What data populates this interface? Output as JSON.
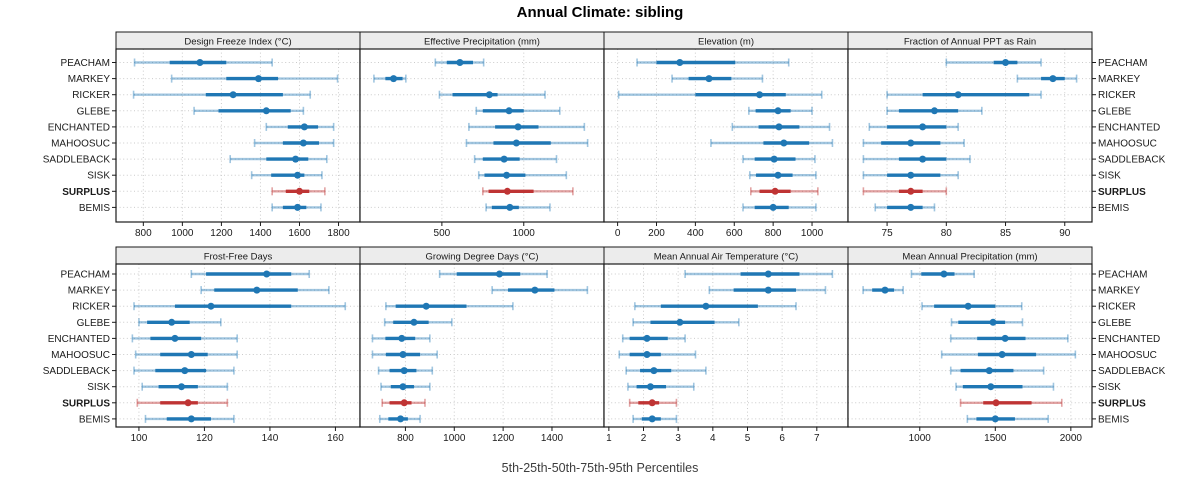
{
  "title": "Annual Climate: sibling",
  "caption": "5th-25th-50th-75th-95th Percentiles",
  "sites": [
    "PEACHAM",
    "MARKEY",
    "RICKER",
    "GLEBE",
    "ENCHANTED",
    "MAHOOSUC",
    "SADDLEBACK",
    "SISK",
    "SURPLUS",
    "BEMIS"
  ],
  "highlight_site": "SURPLUS",
  "colors": {
    "normal": "#1F77B4",
    "normal_light": "rgba(31,119,180,0.42)",
    "highlight": "#BF3434",
    "highlight_light": "rgba(191,52,52,0.45)",
    "grid": "#CBCBCB",
    "strip_bg": "#ECECEC",
    "border": "#1A1A1A",
    "text": "#1A1A1A"
  },
  "chart_data": {
    "type": "dot-whisker-trellis",
    "layout": "2 rows x 4 cols",
    "percentiles": [
      5,
      25,
      50,
      75,
      95
    ],
    "legend": "each row: 5th-25th-50th-75th-95th percentile whisker plot per site; SURPLUS highlighted",
    "panels": [
      {
        "title": "Design Freeze Index (°C)",
        "xlim": [
          660,
          1910
        ],
        "xticks": [
          800,
          1000,
          1200,
          1400,
          1600,
          1800
        ],
        "values": [
          [
            755,
            935,
            1090,
            1225,
            1460
          ],
          [
            945,
            1225,
            1390,
            1490,
            1795
          ],
          [
            750,
            1120,
            1260,
            1515,
            1655
          ],
          [
            1060,
            1185,
            1430,
            1555,
            1620
          ],
          [
            1430,
            1540,
            1625,
            1695,
            1775
          ],
          [
            1370,
            1515,
            1620,
            1700,
            1775
          ],
          [
            1245,
            1430,
            1580,
            1645,
            1740
          ],
          [
            1355,
            1455,
            1590,
            1625,
            1715
          ],
          [
            1460,
            1530,
            1600,
            1650,
            1730
          ],
          [
            1460,
            1515,
            1590,
            1635,
            1710
          ]
        ]
      },
      {
        "title": "Effective Precipitation (mm)",
        "xlim": [
          0,
          1490
        ],
        "xticks": [
          500,
          1000
        ],
        "values": [
          [
            460,
            530,
            610,
            690,
            755
          ],
          [
            85,
            155,
            205,
            260,
            280
          ],
          [
            485,
            565,
            790,
            840,
            1130
          ],
          [
            710,
            750,
            910,
            1000,
            1220
          ],
          [
            665,
            825,
            965,
            1090,
            1370
          ],
          [
            650,
            815,
            955,
            1165,
            1390
          ],
          [
            700,
            750,
            880,
            975,
            1200
          ],
          [
            725,
            760,
            895,
            1010,
            1260
          ],
          [
            750,
            785,
            900,
            1060,
            1300
          ],
          [
            770,
            805,
            915,
            970,
            1160
          ]
        ]
      },
      {
        "title": "Elevation (m)",
        "xlim": [
          -70,
          1185
        ],
        "xticks": [
          0,
          200,
          400,
          600,
          800,
          1000
        ],
        "values": [
          [
            100,
            200,
            320,
            605,
            880
          ],
          [
            280,
            365,
            470,
            585,
            745
          ],
          [
            5,
            400,
            730,
            865,
            1050
          ],
          [
            675,
            710,
            825,
            890,
            1000
          ],
          [
            590,
            725,
            830,
            935,
            1090
          ],
          [
            480,
            750,
            855,
            985,
            1105
          ],
          [
            645,
            705,
            805,
            915,
            1015
          ],
          [
            680,
            712,
            825,
            900,
            1020
          ],
          [
            685,
            730,
            810,
            890,
            1030
          ],
          [
            645,
            705,
            800,
            880,
            1020
          ]
        ]
      },
      {
        "title": "Fraction of Annual PPT as Rain",
        "xlim": [
          71.7,
          92.3
        ],
        "xticks": [
          75,
          80,
          85,
          90
        ],
        "values": [
          [
            80,
            84,
            85,
            86,
            88
          ],
          [
            86,
            88,
            89,
            90,
            91
          ],
          [
            75,
            78,
            81,
            87,
            88
          ],
          [
            75,
            76,
            79,
            81,
            83
          ],
          [
            73.5,
            75,
            78,
            80,
            81
          ],
          [
            73,
            74.5,
            77,
            79.5,
            81.5
          ],
          [
            73,
            76,
            78,
            80,
            82
          ],
          [
            73,
            75,
            77,
            79.5,
            81
          ],
          [
            73,
            76,
            77,
            78,
            80
          ],
          [
            74,
            75,
            77,
            78,
            79
          ]
        ]
      },
      {
        "title": "Frost-Free Days",
        "xlim": [
          93,
          167.5
        ],
        "xticks": [
          100,
          120,
          140,
          160
        ],
        "values": [
          [
            116,
            120.5,
            139,
            146.5,
            152
          ],
          [
            119,
            123,
            136,
            148.5,
            158
          ],
          [
            98.5,
            111,
            122,
            146.5,
            163
          ],
          [
            100,
            102.5,
            110,
            115.5,
            125
          ],
          [
            98,
            103.5,
            111,
            119,
            130
          ],
          [
            99,
            106.5,
            116,
            121,
            130
          ],
          [
            98.5,
            105,
            114,
            120.5,
            129
          ],
          [
            101,
            106,
            113,
            118,
            127
          ],
          [
            99.5,
            106.5,
            115,
            118,
            127
          ],
          [
            102,
            108.5,
            116,
            122,
            129
          ]
        ]
      },
      {
        "title": "Growing Degree Days (°C)",
        "xlim": [
          614,
          1613
        ],
        "xticks": [
          800,
          1000,
          1200,
          1400
        ],
        "values": [
          [
            940,
            1010,
            1185,
            1270,
            1380
          ],
          [
            1155,
            1220,
            1330,
            1410,
            1545
          ],
          [
            720,
            760,
            885,
            1050,
            1240
          ],
          [
            715,
            750,
            835,
            895,
            990
          ],
          [
            665,
            718,
            785,
            840,
            900
          ],
          [
            665,
            720,
            790,
            860,
            930
          ],
          [
            690,
            735,
            795,
            845,
            910
          ],
          [
            700,
            740,
            790,
            835,
            900
          ],
          [
            705,
            735,
            795,
            825,
            880
          ],
          [
            695,
            730,
            780,
            810,
            860
          ]
        ]
      },
      {
        "title": "Mean Annual Air Temperature (°C)",
        "xlim": [
          0.86,
          7.9
        ],
        "xticks": [
          1,
          2,
          3,
          4,
          5,
          6,
          7
        ],
        "values": [
          [
            3.2,
            4.8,
            5.6,
            6.5,
            7.45
          ],
          [
            3.9,
            4.6,
            5.6,
            6.4,
            7.25
          ],
          [
            1.75,
            2.5,
            3.8,
            5.3,
            6.4
          ],
          [
            1.7,
            2.2,
            3.05,
            4.05,
            4.75
          ],
          [
            1.4,
            1.6,
            2.1,
            2.7,
            3.2
          ],
          [
            1.3,
            1.6,
            2.1,
            2.5,
            3.5
          ],
          [
            1.5,
            1.9,
            2.3,
            2.8,
            3.8
          ],
          [
            1.55,
            1.8,
            2.2,
            2.65,
            3.45
          ],
          [
            1.6,
            1.85,
            2.25,
            2.45,
            2.95
          ],
          [
            1.7,
            1.95,
            2.25,
            2.5,
            2.95
          ]
        ]
      },
      {
        "title": "Mean Annual Precipitation (mm)",
        "xlim": [
          525,
          2140
        ],
        "xticks": [
          1000,
          1500,
          2000
        ],
        "values": [
          [
            945,
            1010,
            1160,
            1230,
            1360
          ],
          [
            625,
            685,
            770,
            830,
            890
          ],
          [
            1015,
            1095,
            1320,
            1500,
            1675
          ],
          [
            1210,
            1255,
            1485,
            1565,
            1680
          ],
          [
            1205,
            1380,
            1565,
            1700,
            1980
          ],
          [
            1145,
            1385,
            1545,
            1770,
            2030
          ],
          [
            1205,
            1270,
            1460,
            1620,
            1820
          ],
          [
            1240,
            1285,
            1470,
            1680,
            1885
          ],
          [
            1270,
            1420,
            1505,
            1740,
            1940
          ],
          [
            1315,
            1375,
            1500,
            1630,
            1850
          ]
        ]
      }
    ]
  }
}
